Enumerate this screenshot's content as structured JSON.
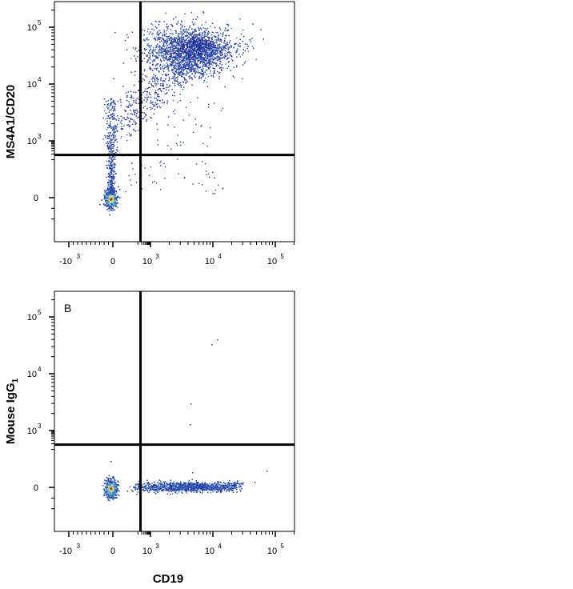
{
  "chart_data": [
    {
      "type": "scatter",
      "panel_label": "",
      "xlabel": "",
      "ylabel": "MS4A1/CD20",
      "ylabel_sub": "",
      "x_scale": "biexponential",
      "y_scale": "biexponential",
      "xlim": [
        -1000,
        200000
      ],
      "ylim": [
        -300,
        200000
      ],
      "x_ticks": [
        {
          "value": -1000,
          "base": "-10",
          "exp": "3"
        },
        {
          "value": 0,
          "base": "0",
          "exp": ""
        },
        {
          "value": 1000,
          "base": "10",
          "exp": "3"
        },
        {
          "value": 10000,
          "base": "10",
          "exp": "4"
        },
        {
          "value": 100000,
          "base": "10",
          "exp": "5"
        }
      ],
      "y_ticks": [
        {
          "value": 0,
          "base": "0",
          "exp": ""
        },
        {
          "value": 1000,
          "base": "10",
          "exp": "3"
        },
        {
          "value": 10000,
          "base": "10",
          "exp": "4"
        },
        {
          "value": 100000,
          "base": "10",
          "exp": "5"
        }
      ],
      "quadrant_gate": {
        "x": 160,
        "y": 180
      },
      "populations": [
        {
          "name": "",
          "x_center": -60,
          "y_center": 0,
          "density": "high",
          "color": "#d73027"
        },
        {
          "name": "",
          "x_center": -60,
          "y_center": 500,
          "density": "medium",
          "color": "#3b5bb5"
        },
        {
          "name": "",
          "x_center": 4000,
          "y_center": 35000,
          "density": "medium",
          "color": "#2c4fb0"
        }
      ],
      "colormap": [
        "#2b3fa8",
        "#3c7fd0",
        "#5fc2d6",
        "#9be19a",
        "#f5e04a",
        "#f08a2c",
        "#d73027"
      ]
    },
    {
      "type": "scatter",
      "panel_label": "B",
      "xlabel": "CD19",
      "ylabel": "Mouse IgG",
      "ylabel_sub": "1",
      "x_scale": "biexponential",
      "y_scale": "biexponential",
      "xlim": [
        -1000,
        200000
      ],
      "ylim": [
        -300,
        200000
      ],
      "x_ticks": [
        {
          "value": -1000,
          "base": "-10",
          "exp": "3"
        },
        {
          "value": 0,
          "base": "0",
          "exp": ""
        },
        {
          "value": 1000,
          "base": "10",
          "exp": "3"
        },
        {
          "value": 10000,
          "base": "10",
          "exp": "4"
        },
        {
          "value": 100000,
          "base": "10",
          "exp": "5"
        }
      ],
      "y_ticks": [
        {
          "value": 0,
          "base": "0",
          "exp": ""
        },
        {
          "value": 1000,
          "base": "10",
          "exp": "3"
        },
        {
          "value": 10000,
          "base": "10",
          "exp": "4"
        },
        {
          "value": 100000,
          "base": "10",
          "exp": "5"
        }
      ],
      "quadrant_gate": {
        "x": 160,
        "y": 180
      },
      "populations": [
        {
          "name": "",
          "x_center": -60,
          "y_center": 0,
          "density": "high",
          "color": "#d73027"
        },
        {
          "name": "",
          "x_center": 3000,
          "y_center": 0,
          "density": "medium",
          "color": "#2c4fb0"
        }
      ],
      "colormap": [
        "#2b3fa8",
        "#3c7fd0",
        "#5fc2d6",
        "#9be19a",
        "#f5e04a",
        "#f08a2c",
        "#d73027"
      ]
    }
  ]
}
